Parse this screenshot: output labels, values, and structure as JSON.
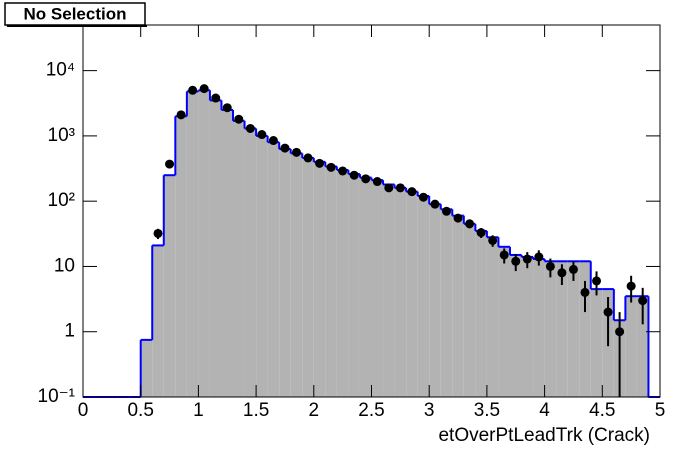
{
  "chart_data": {
    "type": "histogram",
    "title": "No Selection",
    "x_label": "etOverPtLeadTrk (Crack)",
    "bins": [
      0,
      0.1,
      0.2,
      0.3,
      0.4,
      0.5,
      0.6,
      0.7,
      0.8,
      0.9,
      1.0,
      1.1,
      1.2,
      1.3,
      1.4,
      1.5,
      1.6,
      1.7,
      1.8,
      1.9,
      2.0,
      2.1,
      2.2,
      2.3,
      2.4,
      2.5,
      2.6,
      2.7,
      2.8,
      2.9,
      3.0,
      3.1,
      3.2,
      3.3,
      3.4,
      3.5,
      3.6,
      3.7,
      3.8,
      3.9,
      4.0,
      4.1,
      4.2,
      4.3,
      4.4,
      4.5,
      4.6,
      4.7,
      4.8,
      4.9,
      5.0
    ],
    "series": [
      {
        "color": "#0000ff",
        "fill": "#b3b3b3",
        "values": [
          0,
          0,
          0,
          0,
          0,
          0.75,
          21,
          250,
          2000,
          4800,
          5000,
          3500,
          2500,
          1700,
          1300,
          1000,
          800,
          630,
          540,
          460,
          400,
          340,
          300,
          260,
          230,
          210,
          180,
          160,
          140,
          120,
          90,
          75,
          60,
          45,
          35,
          28,
          20,
          15,
          14,
          13,
          12,
          12,
          12,
          12,
          4.5,
          4.5,
          1.5,
          3.5,
          3.5,
          0
        ]
      },
      {
        "color": "#000000",
        "values": [
          null,
          null,
          null,
          null,
          null,
          null,
          32,
          370,
          2100,
          5000,
          5300,
          3800,
          2700,
          1800,
          1300,
          1050,
          850,
          650,
          560,
          460,
          380,
          330,
          290,
          250,
          220,
          200,
          160,
          160,
          140,
          115,
          90,
          70,
          55,
          45,
          33,
          25,
          15,
          12,
          13,
          14,
          10,
          8,
          9,
          4,
          6,
          2,
          1,
          5,
          3,
          null
        ],
        "errors": [
          null,
          null,
          null,
          null,
          null,
          null,
          5.7,
          19,
          46,
          71,
          73,
          62,
          52,
          42,
          36,
          32,
          29,
          25,
          24,
          21,
          19,
          18,
          17,
          16,
          15,
          14,
          13,
          13,
          12,
          11,
          9.5,
          8.4,
          7.4,
          6.7,
          5.7,
          5,
          3.9,
          3.5,
          3.6,
          3.7,
          3.2,
          2.8,
          3,
          2,
          2.4,
          1.4,
          1,
          2.2,
          1.7,
          null
        ]
      }
    ],
    "xlim": [
      0,
      5
    ],
    "xticks": [
      0,
      0.5,
      1,
      1.5,
      2,
      2.5,
      3,
      3.5,
      4,
      4.5,
      5
    ],
    "ylim": [
      0.1,
      50000
    ],
    "log_y": true,
    "yticks": [
      {
        "value": 0.1,
        "label": "10⁻¹"
      },
      1,
      10,
      {
        "value": 100,
        "label": "10²"
      },
      {
        "value": 1000,
        "label": "10³"
      },
      {
        "value": 10000,
        "label": "10⁴"
      }
    ]
  }
}
